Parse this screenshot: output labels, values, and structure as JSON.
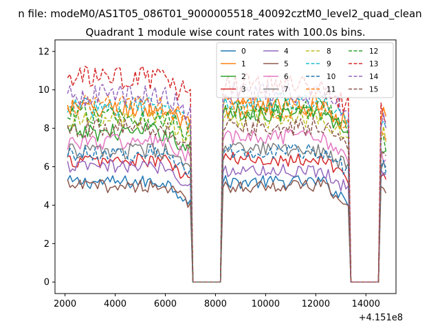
{
  "suptitle": "n file: modeM0/AS1T05_086T01_9000005518_40092cztM0_level2_quad_clean",
  "chart_data": {
    "type": "line",
    "title": "Quadrant 1 module wise count rates with 100.0s bins.",
    "xlabel": "",
    "ylabel": "",
    "x_offset_text": "+4.151e8",
    "xlim": [
      1600,
      15200
    ],
    "ylim": [
      -0.6,
      12.6
    ],
    "xticks": [
      2000,
      4000,
      6000,
      8000,
      10000,
      12000,
      14000
    ],
    "yticks": [
      0,
      2,
      4,
      6,
      8,
      10,
      12
    ],
    "grid": false,
    "legend_placement": "top-right",
    "legend_columns": 4,
    "x_segments": [
      [
        2100,
        7000
      ],
      [
        8300,
        13300
      ],
      [
        14600,
        14800
      ]
    ],
    "gap_intervals": [
      [
        7100,
        8200
      ],
      [
        13400,
        14500
      ]
    ],
    "series": [
      {
        "name": "0",
        "color": "#1f77b4",
        "style": "solid",
        "levels": [
          5.2,
          5.2,
          5.8
        ]
      },
      {
        "name": "1",
        "color": "#ff7f0e",
        "style": "solid",
        "levels": [
          9.0,
          9.2,
          8.8
        ]
      },
      {
        "name": "2",
        "color": "#2ca02c",
        "style": "solid",
        "levels": [
          7.8,
          8.8,
          7.0
        ]
      },
      {
        "name": "3",
        "color": "#d62728",
        "style": "solid",
        "levels": [
          6.3,
          6.4,
          5.5
        ]
      },
      {
        "name": "4",
        "color": "#9467bd",
        "style": "solid",
        "levels": [
          6.0,
          5.8,
          5.8
        ]
      },
      {
        "name": "5",
        "color": "#8c564b",
        "style": "solid",
        "levels": [
          5.0,
          5.0,
          4.8
        ]
      },
      {
        "name": "6",
        "color": "#e377c2",
        "style": "solid",
        "levels": [
          7.3,
          7.5,
          6.6
        ]
      },
      {
        "name": "7",
        "color": "#7f7f7f",
        "style": "solid",
        "levels": [
          6.8,
          6.9,
          6.2
        ]
      },
      {
        "name": "8",
        "color": "#bcbd22",
        "style": "dashed",
        "levels": [
          8.4,
          8.5,
          7.6
        ]
      },
      {
        "name": "9",
        "color": "#17becf",
        "style": "dashed",
        "levels": [
          9.1,
          9.4,
          8.4
        ]
      },
      {
        "name": "10",
        "color": "#1f77b4",
        "style": "dashed",
        "levels": [
          6.7,
          6.8,
          6.0
        ]
      },
      {
        "name": "11",
        "color": "#ff7f0e",
        "style": "dashed",
        "levels": [
          9.2,
          9.0,
          7.8
        ]
      },
      {
        "name": "12",
        "color": "#2ca02c",
        "style": "dashed",
        "levels": [
          8.6,
          9.0,
          7.2
        ]
      },
      {
        "name": "13",
        "color": "#d62728",
        "style": "dashed",
        "levels": [
          10.6,
          10.2,
          8.8
        ]
      },
      {
        "name": "14",
        "color": "#9467bd",
        "style": "dashed",
        "levels": [
          9.7,
          9.8,
          8.5
        ]
      },
      {
        "name": "15",
        "color": "#8c564b",
        "style": "dashed",
        "levels": [
          8.0,
          8.1,
          7.0
        ]
      }
    ]
  }
}
